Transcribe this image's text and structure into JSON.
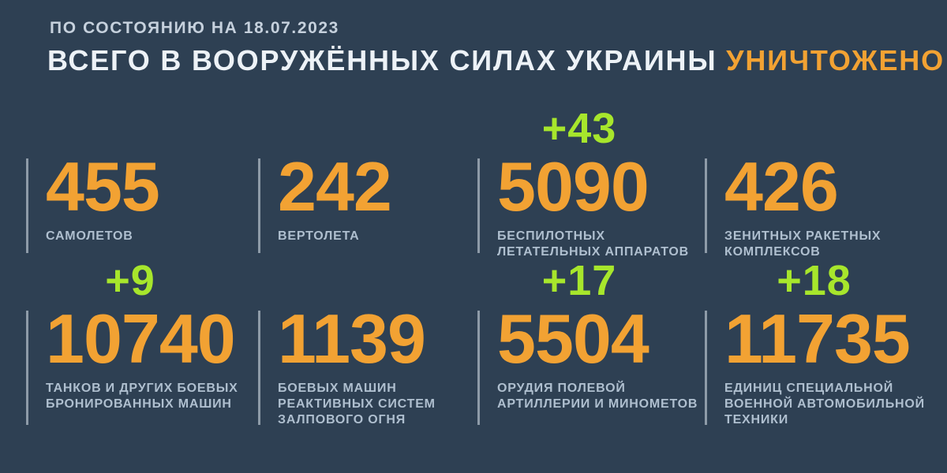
{
  "page": {
    "date_line": "ПО СОСТОЯНИЮ НА 18.07.2023",
    "title_main": "ВСЕГО В ВООРУЖЁННЫХ СИЛАХ УКРАИНЫ ",
    "title_accent": "УНИЧТОЖЕНО:",
    "colors": {
      "bg": "#2E4053",
      "orange": "#F2A233",
      "green": "#A7E62C",
      "text": "#EDF2F7",
      "subtext": "#C6D1DD",
      "label": "#AFBFCF",
      "divider": "#C2CCD6"
    }
  },
  "stats": [
    {
      "delta": "",
      "value": "455",
      "label": "САМОЛЕТОВ"
    },
    {
      "delta": "",
      "value": "242",
      "label": "ВЕРТОЛЕТА"
    },
    {
      "delta": "+43",
      "value": "5090",
      "label": "БЕСПИЛОТНЫХ\nЛЕТАТЕЛЬНЫХ АППАРАТОВ"
    },
    {
      "delta": "",
      "value": "426",
      "label": "ЗЕНИТНЫХ РАКЕТНЫХ\nКОМПЛЕКСОВ"
    },
    {
      "delta": "+9",
      "value": "10740",
      "label": "ТАНКОВ И ДРУГИХ БОЕВЫХ\nБРОНИРОВАННЫХ МАШИН"
    },
    {
      "delta": "",
      "value": "1139",
      "label": "БОЕВЫХ МАШИН\nРЕАКТИВНЫХ СИСТЕМ\nЗАЛПОВОГО ОГНЯ"
    },
    {
      "delta": "+17",
      "value": "5504",
      "label": "ОРУДИЯ ПОЛЕВОЙ\nАРТИЛЛЕРИИ И МИНОМЕТОВ"
    },
    {
      "delta": "+18",
      "value": "11735",
      "label": "ЕДИНИЦ СПЕЦИАЛЬНОЙ\nВОЕННОЙ АВТОМОБИЛЬНОЙ\nТЕХНИКИ"
    }
  ],
  "chart_data": {
    "type": "table",
    "title": "ВСЕГО В ВООРУЖЁННЫХ СИЛАХ УКРАИНЫ УНИЧТОЖЕНО:",
    "subtitle": "ПО СОСТОЯНИЮ НА 18.07.2023",
    "categories": [
      "самолетов",
      "вертолета",
      "беспилотных летательных аппаратов",
      "зенитных ракетных комплексов",
      "танков и других боевых бронированных машин",
      "боевых машин реактивных систем залпового огня",
      "орудия полевой артиллерии и минометов",
      "единиц специальной военной автомобильной техники"
    ],
    "values": [
      455,
      242,
      5090,
      426,
      10740,
      1139,
      5504,
      11735
    ],
    "daily_increase": [
      null,
      null,
      43,
      null,
      9,
      null,
      17,
      18
    ],
    "layout_hint": "2 rows x 4 columns, green delta above value where present"
  }
}
